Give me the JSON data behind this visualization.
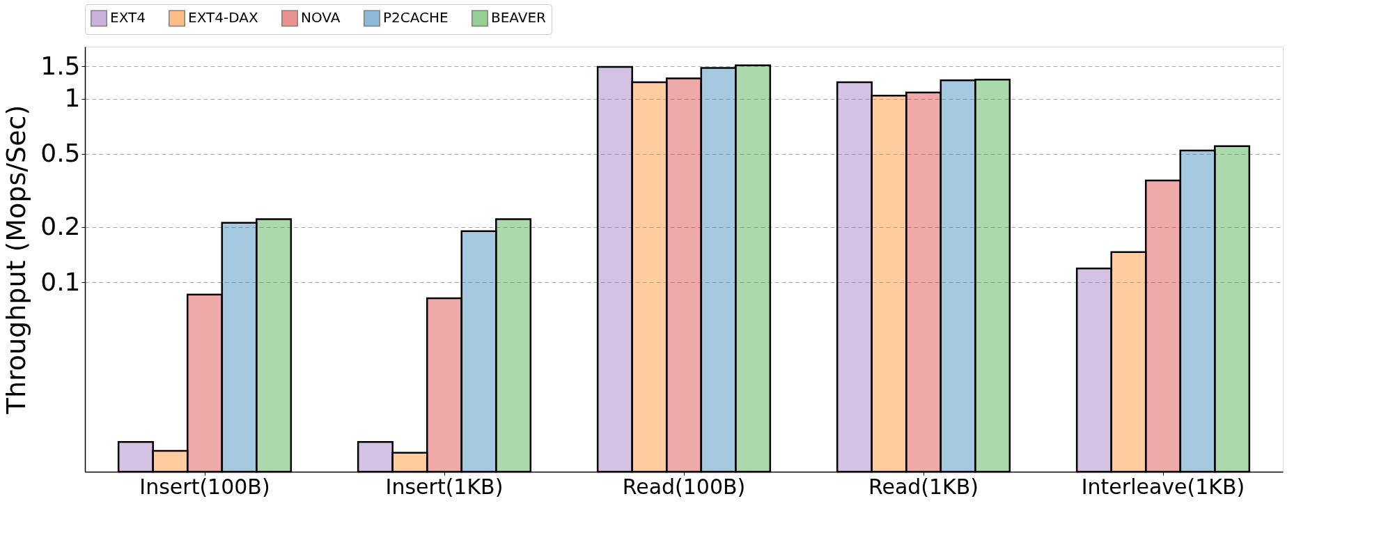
{
  "chart_data": {
    "type": "bar",
    "ylabel": "Throughput (Mops/Sec)",
    "categories": [
      "Insert(100B)",
      "Insert(1KB)",
      "Read(100B)",
      "Read(1KB)",
      "Interleave(1KB)"
    ],
    "series": [
      {
        "name": "EXT4",
        "color": "#9467bd",
        "values": [
          0.0135,
          0.0135,
          1.49,
          1.23,
          0.119
        ]
      },
      {
        "name": "EXT4-DAX",
        "color": "#ff7f0e",
        "values": [
          0.0121,
          0.0118,
          1.23,
          1.04,
          0.146
        ]
      },
      {
        "name": "NOVA",
        "color": "#d62728",
        "values": [
          0.0857,
          0.082,
          1.29,
          1.08,
          0.359
        ]
      },
      {
        "name": "P2CACHE",
        "color": "#1f77b4",
        "values": [
          0.211,
          0.19,
          1.47,
          1.26,
          0.522
        ]
      },
      {
        "name": "BEAVER",
        "color": "#2ca02c",
        "values": [
          0.221,
          0.221,
          1.52,
          1.27,
          0.552
        ]
      }
    ],
    "log": "y",
    "ylim": [
      0.0093,
      1.92
    ],
    "yticks": [
      0.1,
      0.2,
      0.5,
      1,
      1.5
    ],
    "grid": "y",
    "legend": "top"
  }
}
